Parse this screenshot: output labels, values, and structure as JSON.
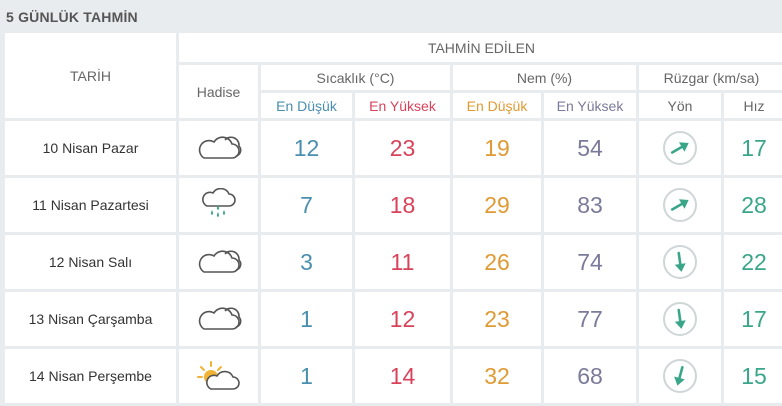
{
  "title": "5 GÜNLÜK TAHMİN",
  "header": {
    "date": "TARİH",
    "forecast": "TAHMİN EDİLEN",
    "event": "Hadise",
    "temperature": "Sıcaklık (°C)",
    "humidity": "Nem (%)",
    "wind": "Rüzgar (km/sa)",
    "low": "En Düşük",
    "high": "En Yüksek",
    "direction": "Yön",
    "speed": "Hız"
  },
  "colors": {
    "temp_low": "#4a8fb0",
    "temp_high": "#d9425a",
    "humidity_low": "#e09a33",
    "humidity_high": "#7a7a9a",
    "wind": "#3aa689"
  },
  "rows": [
    {
      "date": "10 Nisan Pazar",
      "icon": "cloudy-icon",
      "temp_low": "12",
      "temp_high": "23",
      "hum_low": "19",
      "hum_high": "54",
      "wind_dir": "arrow-northeast-icon",
      "wind_speed": "17"
    },
    {
      "date": "11 Nisan Pazartesi",
      "icon": "rain-icon",
      "temp_low": "7",
      "temp_high": "18",
      "hum_low": "29",
      "hum_high": "83",
      "wind_dir": "arrow-northeast-icon",
      "wind_speed": "28"
    },
    {
      "date": "12 Nisan Salı",
      "icon": "cloudy-icon",
      "temp_low": "3",
      "temp_high": "11",
      "hum_low": "26",
      "hum_high": "74",
      "wind_dir": "arrow-south-icon",
      "wind_speed": "22"
    },
    {
      "date": "13 Nisan Çarşamba",
      "icon": "cloudy-icon",
      "temp_low": "1",
      "temp_high": "12",
      "hum_low": "23",
      "hum_high": "77",
      "wind_dir": "arrow-south-icon",
      "wind_speed": "17"
    },
    {
      "date": "14 Nisan Perşembe",
      "icon": "partly-cloudy-icon",
      "temp_low": "1",
      "temp_high": "14",
      "hum_low": "32",
      "hum_high": "68",
      "wind_dir": "arrow-south-southwest-icon",
      "wind_speed": "15"
    }
  ]
}
